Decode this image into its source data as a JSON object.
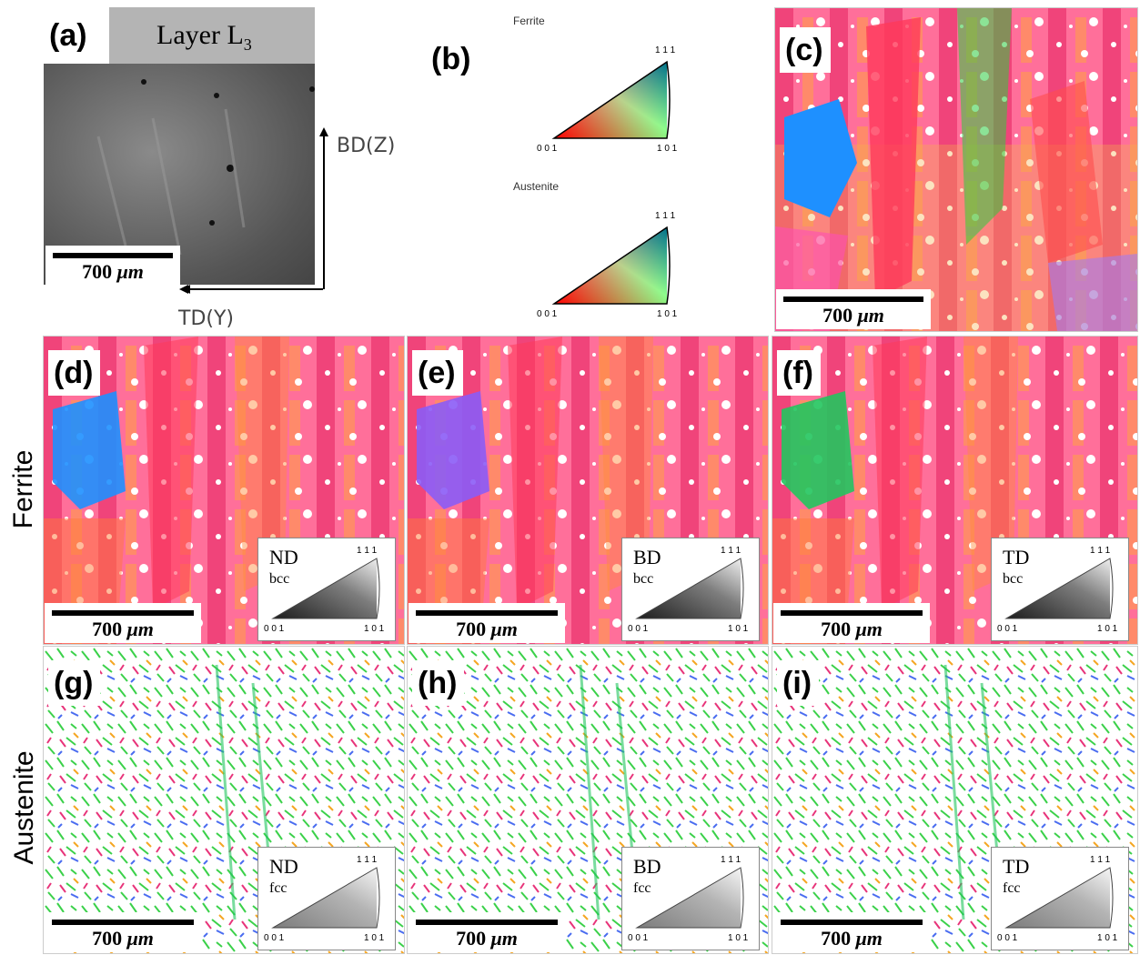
{
  "panel_a": {
    "label": "(a)",
    "header": "Layer L",
    "header_sub": "3",
    "scale_value": "700",
    "scale_unit": "μm",
    "axis_vertical": "BD(Z)",
    "axis_horizontal": "TD(Y)"
  },
  "panel_b": {
    "label": "(b)",
    "key1_title": "Ferrite",
    "key2_title": "Austenite",
    "corner_top": "1 1 1",
    "corner_left": "0 0 1",
    "corner_right": "1 0 1"
  },
  "panel_c": {
    "label": "(c)",
    "scale_value": "700",
    "scale_unit": "μm"
  },
  "row_labels": {
    "ferrite": "Ferrite",
    "austenite": "Austenite"
  },
  "panels": [
    {
      "label": "(d)",
      "dir": "ND",
      "phase": "bcc",
      "scale_value": "700",
      "scale_unit": "μm"
    },
    {
      "label": "(e)",
      "dir": "BD",
      "phase": "bcc",
      "scale_value": "700",
      "scale_unit": "μm"
    },
    {
      "label": "(f)",
      "dir": "TD",
      "phase": "bcc",
      "scale_value": "700",
      "scale_unit": "μm"
    },
    {
      "label": "(g)",
      "dir": "ND",
      "phase": "fcc",
      "scale_value": "700",
      "scale_unit": "μm"
    },
    {
      "label": "(h)",
      "dir": "BD",
      "phase": "fcc",
      "scale_value": "700",
      "scale_unit": "μm"
    },
    {
      "label": "(i)",
      "dir": "TD",
      "phase": "fcc",
      "scale_value": "700",
      "scale_unit": "μm"
    }
  ],
  "inset_corners": {
    "top": "1 1 1",
    "left": "0 0 1",
    "right": "1 0 1"
  },
  "colors": {
    "ipf_red": "#ff0000",
    "ipf_green": "#00ff00",
    "ipf_blue": "#0000ff",
    "micrograph_gray": "#6e6e6e",
    "header_gray": "#b4b4b4"
  }
}
